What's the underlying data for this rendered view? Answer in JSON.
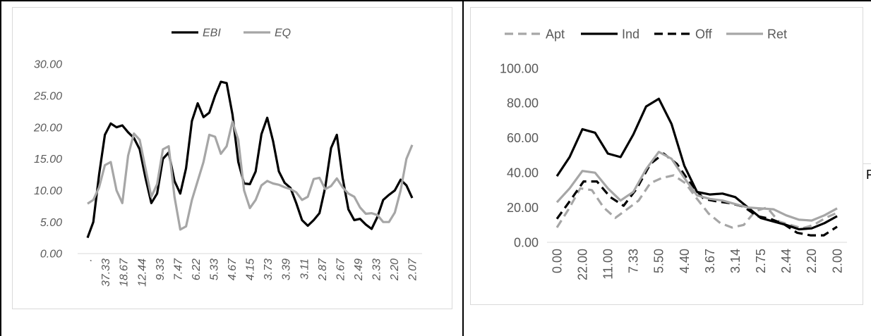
{
  "chart_data": [
    {
      "type": "line",
      "title": "",
      "italic": true,
      "ylim": [
        0,
        30
      ],
      "yticks": [
        "0.00",
        "5.00",
        "10.00",
        "15.00",
        "20.00",
        "25.00",
        "30.00"
      ],
      "tick_labels": [
        ".",
        "37.33",
        "18.67",
        "12.44",
        "9.33",
        "7.47",
        "6.22",
        "5.33",
        "4.67",
        "4.15",
        "3.73",
        "3.39",
        "3.11",
        "2.87",
        "2.67",
        "2.49",
        "2.33",
        "2.20",
        "2.07"
      ],
      "legend": "top",
      "grid": false,
      "series": [
        {
          "name": "EBI",
          "color": "#000000",
          "dash": "",
          "values": [
            2.5,
            5.0,
            12.5,
            18.8,
            20.6,
            20.0,
            20.3,
            19.2,
            18.3,
            16.5,
            12.0,
            8.0,
            9.5,
            15.0,
            16.0,
            11.5,
            9.5,
            13.5,
            21.0,
            23.8,
            21.6,
            22.3,
            25.0,
            27.2,
            27.0,
            22.0,
            14.5,
            11.1,
            11.0,
            13.0,
            18.9,
            21.5,
            17.8,
            13.0,
            11.2,
            10.4,
            8.0,
            5.3,
            4.4,
            5.3,
            6.4,
            10.5,
            16.7,
            18.8,
            12.0,
            7.0,
            5.3,
            5.5,
            4.6,
            3.9,
            5.8,
            8.5,
            9.3,
            10.0,
            11.7,
            10.8,
            8.8
          ]
        },
        {
          "name": "EQ",
          "color": "#a6a6a6",
          "dash": "",
          "values": [
            7.9,
            8.5,
            10.5,
            14.0,
            14.5,
            10.0,
            8.0,
            15.5,
            19.0,
            18.0,
            13.5,
            9.0,
            11.0,
            16.5,
            17.0,
            9.0,
            3.8,
            4.3,
            8.5,
            11.5,
            14.5,
            18.8,
            18.5,
            15.8,
            17.0,
            20.9,
            18.0,
            10.0,
            7.2,
            8.5,
            10.8,
            11.5,
            11.1,
            10.9,
            10.5,
            10.2,
            9.7,
            8.5,
            9.0,
            11.8,
            12.0,
            10.2,
            10.7,
            11.9,
            10.5,
            9.5,
            9.0,
            7.3,
            6.3,
            6.4,
            6.1,
            5.0,
            5.0,
            6.5,
            10.0,
            15.0,
            17.2
          ]
        }
      ]
    },
    {
      "type": "line",
      "title": "",
      "italic": false,
      "ylim": [
        0,
        100
      ],
      "yticks": [
        "0.00",
        "20.00",
        "40.00",
        "60.00",
        "80.00",
        "100.00"
      ],
      "tick_labels": [
        "0.00",
        "22.00",
        "11.00",
        "7.33",
        "5.50",
        "4.40",
        "3.67",
        "3.14",
        "2.75",
        "2.44",
        "2.20",
        "2.00"
      ],
      "legend": "top",
      "grid": false,
      "series": [
        {
          "name": "Apt",
          "color": "#a6a6a6",
          "dash": "12,7",
          "values": [
            8.5,
            19.0,
            31.0,
            30.0,
            20.0,
            14.0,
            19.0,
            24.0,
            34.0,
            37.0,
            38.5,
            34.0,
            25.0,
            16.5,
            11.0,
            8.5,
            10.0,
            18.0,
            20.0,
            12.0,
            10.0,
            8.0,
            10.0,
            14.0,
            17.0
          ]
        },
        {
          "name": "Ind",
          "color": "#000000",
          "dash": "",
          "values": [
            38.0,
            49.0,
            65.0,
            63.0,
            51.0,
            49.0,
            62.0,
            78.0,
            82.5,
            68.0,
            44.0,
            29.0,
            27.5,
            28.0,
            26.0,
            20.0,
            14.0,
            12.0,
            10.0,
            7.5,
            8.0,
            11.0,
            15.0
          ]
        },
        {
          "name": "Off",
          "color": "#000000",
          "dash": "12,7",
          "values": [
            13.5,
            24.0,
            35.0,
            35.0,
            26.0,
            21.0,
            31.0,
            45.0,
            51.0,
            45.0,
            34.0,
            25.0,
            23.5,
            22.5,
            20.5,
            15.0,
            13.5,
            10.5,
            5.5,
            4.0,
            4.0,
            9.0
          ]
        },
        {
          "name": "Ret",
          "color": "#a6a6a6",
          "dash": "",
          "values": [
            23.0,
            31.0,
            41.0,
            40.0,
            31.0,
            24.0,
            29.0,
            42.0,
            52.0,
            48.0,
            37.0,
            27.0,
            25.0,
            24.0,
            22.0,
            20.0,
            19.5,
            19.0,
            15.5,
            13.0,
            12.5,
            15.5,
            19.5
          ]
        }
      ]
    }
  ],
  "stray_text": "F"
}
